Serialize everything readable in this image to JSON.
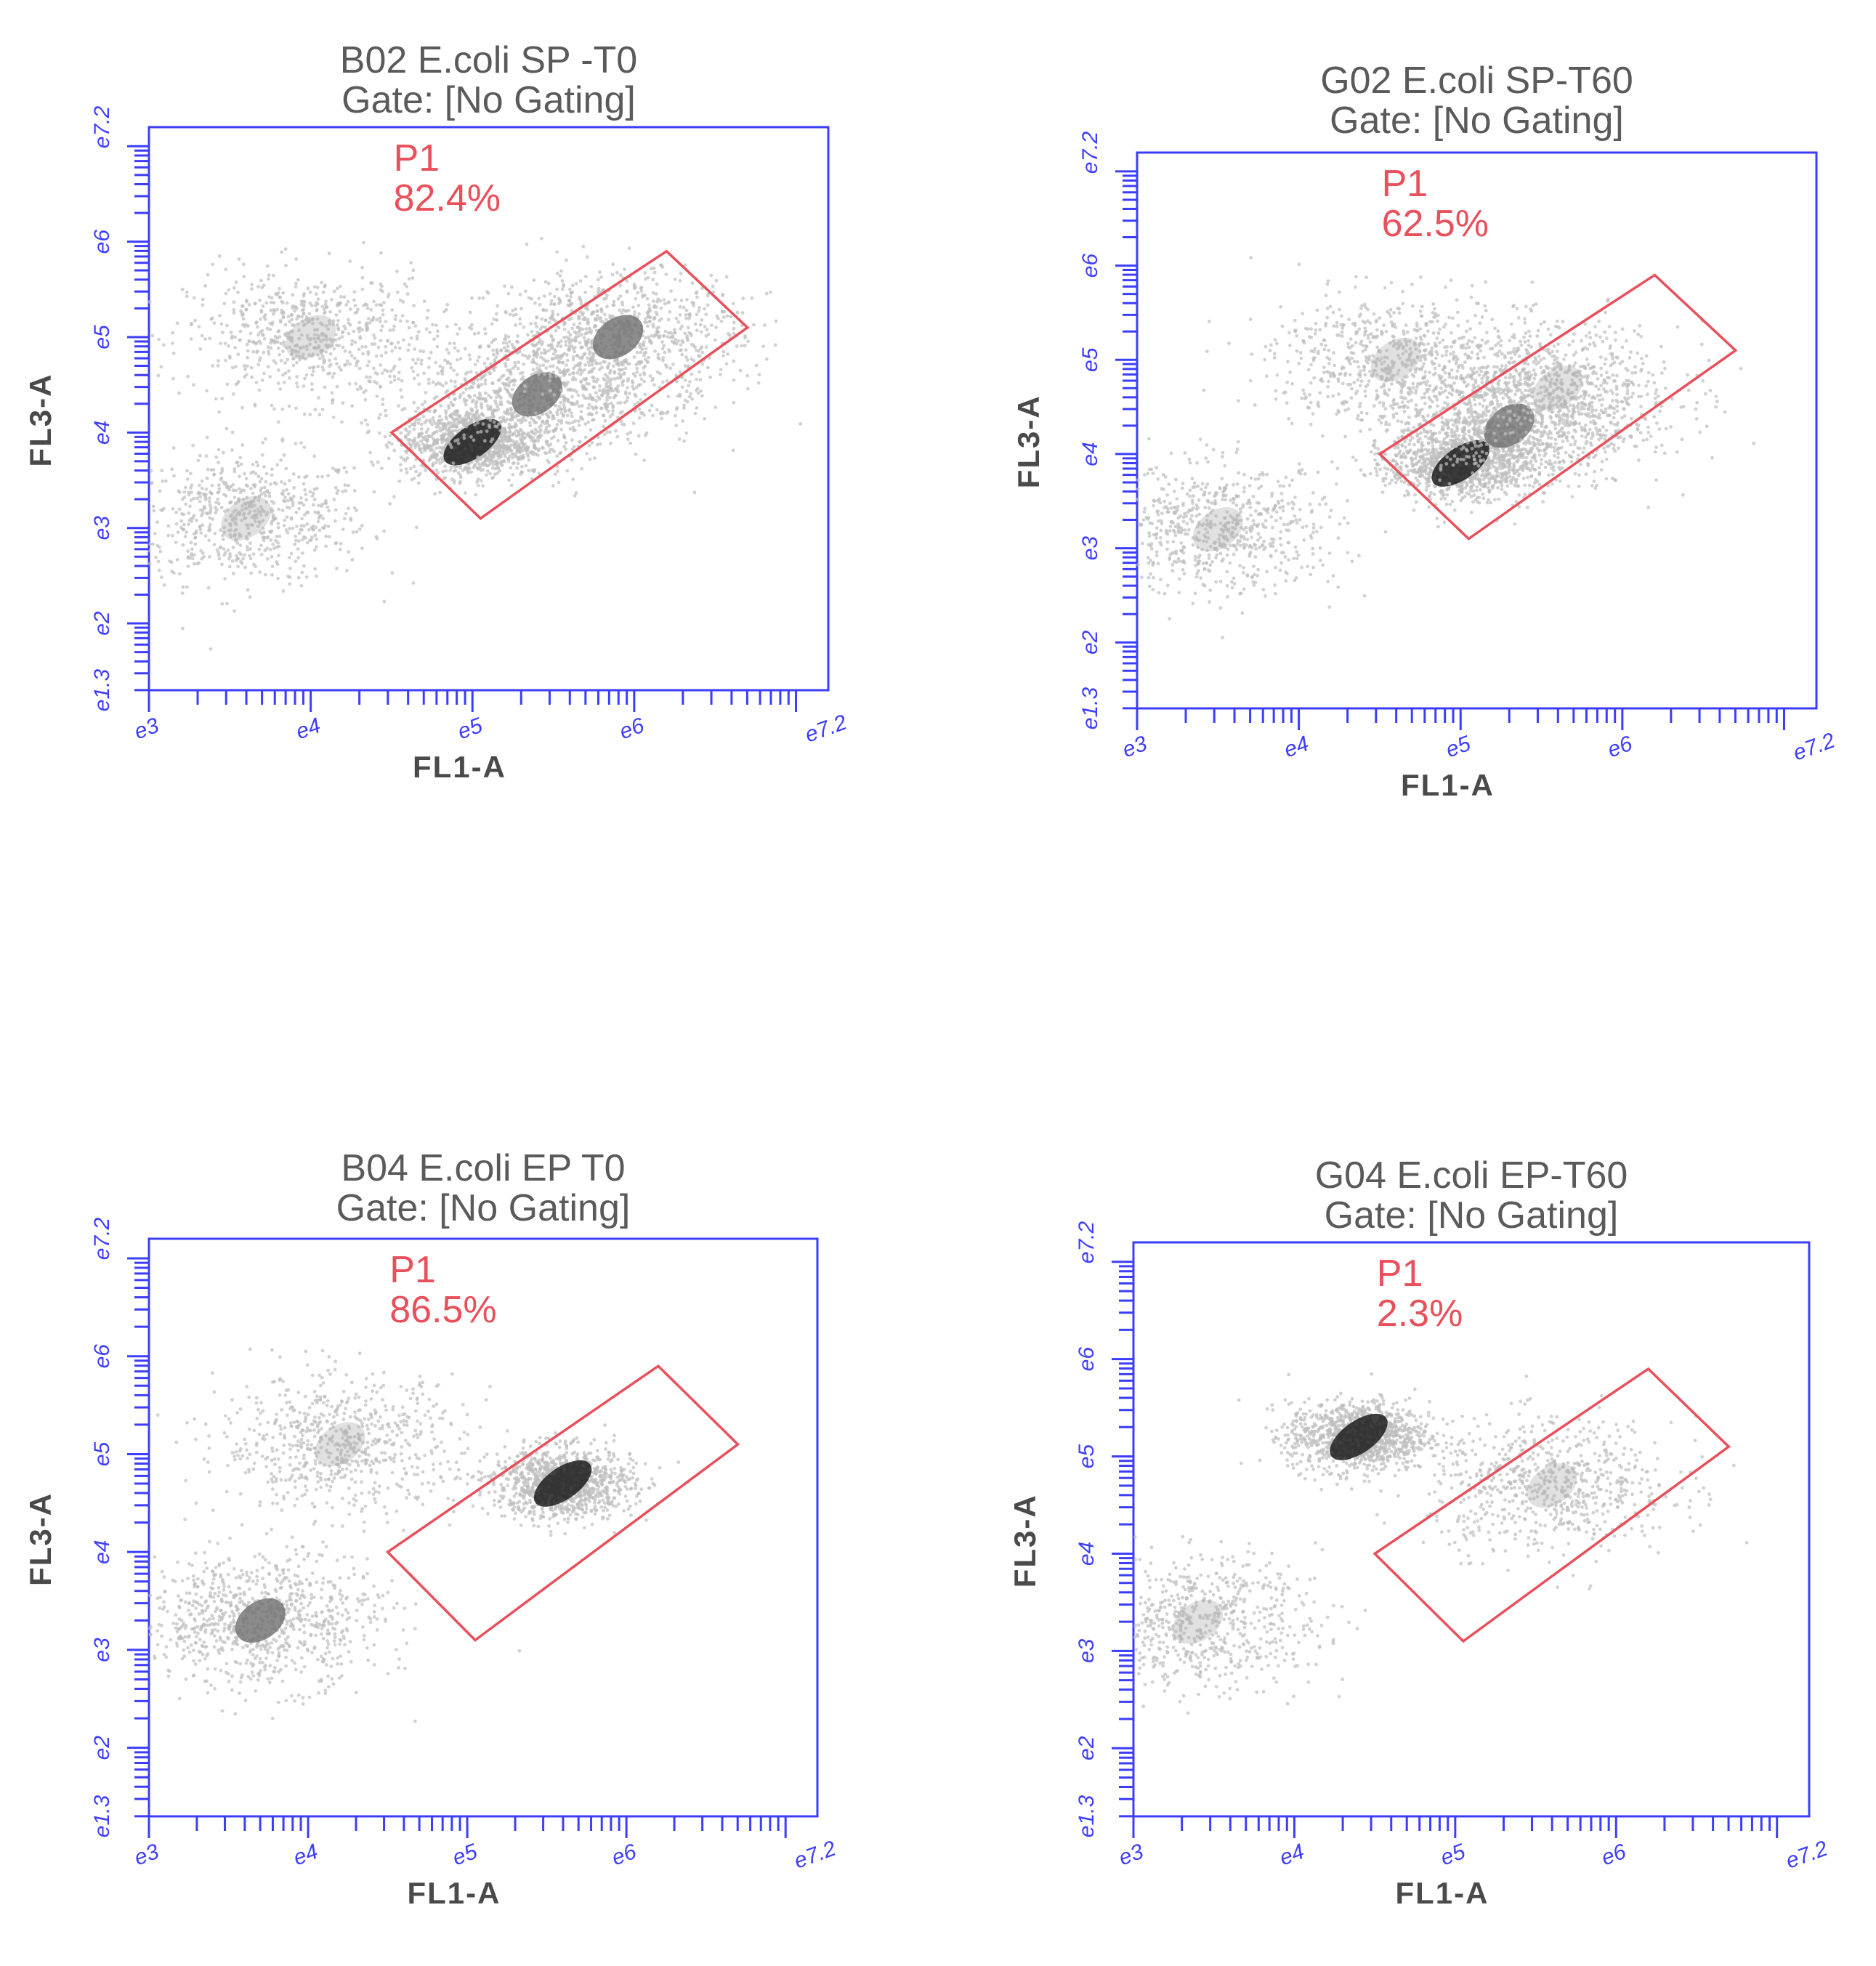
{
  "chart_data": [
    {
      "type": "scatter",
      "title": "B02 E.coli SP -T0",
      "subtitle": "Gate: [No Gating]",
      "xlabel": "FL1-A",
      "ylabel": "FL3-A",
      "x_scale": "log10",
      "y_scale": "log10",
      "xlim": [
        1000,
        15848932
      ],
      "ylim": [
        19953,
        15848932
      ],
      "x_ticks": [
        "10^3",
        "10^4",
        "10^5",
        "10^6",
        "10^7.2"
      ],
      "y_ticks": [
        "10^1.3",
        "10^2",
        "10^3",
        "10^4",
        "10^5",
        "10^6",
        "10^7.2"
      ],
      "gate": {
        "name": "P1",
        "percent": "82.4%",
        "color": "#e8505b"
      },
      "gate_polygon_log10": [
        [
          4.5,
          4.0
        ],
        [
          6.2,
          5.9
        ],
        [
          6.7,
          5.1
        ],
        [
          5.05,
          3.1
        ]
      ],
      "populations": [
        {
          "log_x": 3.6,
          "log_y": 3.1,
          "density": "low"
        },
        {
          "log_x": 4.0,
          "log_y": 5.0,
          "density": "low"
        },
        {
          "log_x": 5.0,
          "log_y": 3.9,
          "density": "high"
        },
        {
          "log_x": 5.4,
          "log_y": 4.4,
          "density": "medium"
        },
        {
          "log_x": 5.9,
          "log_y": 5.0,
          "density": "medium"
        }
      ]
    },
    {
      "type": "scatter",
      "title": "G02 E.coli SP-T60",
      "subtitle": "Gate: [No Gating]",
      "xlabel": "FL1-A",
      "ylabel": "FL3-A",
      "x_scale": "log10",
      "y_scale": "log10",
      "xlim": [
        1000,
        15848932
      ],
      "ylim": [
        19953,
        15848932
      ],
      "x_ticks": [
        "10^3",
        "10^4",
        "10^5",
        "10^6",
        "10^7.2"
      ],
      "y_ticks": [
        "10^1.3",
        "10^2",
        "10^3",
        "10^4",
        "10^5",
        "10^6",
        "10^7.2"
      ],
      "gate": {
        "name": "P1",
        "percent": "62.5%",
        "color": "#e8505b"
      },
      "gate_polygon_log10": [
        [
          4.5,
          4.0
        ],
        [
          6.2,
          5.9
        ],
        [
          6.7,
          5.1
        ],
        [
          5.05,
          3.1
        ]
      ],
      "populations": [
        {
          "log_x": 3.5,
          "log_y": 3.2,
          "density": "low"
        },
        {
          "log_x": 4.6,
          "log_y": 5.0,
          "density": "low"
        },
        {
          "log_x": 5.0,
          "log_y": 3.9,
          "density": "high"
        },
        {
          "log_x": 5.3,
          "log_y": 4.3,
          "density": "medium"
        },
        {
          "log_x": 5.6,
          "log_y": 4.7,
          "density": "low"
        }
      ]
    },
    {
      "type": "scatter",
      "title": "B04 E.coli EP T0",
      "subtitle": "Gate: [No Gating]",
      "xlabel": "FL1-A",
      "ylabel": "FL3-A",
      "x_scale": "log10",
      "y_scale": "log10",
      "xlim": [
        1000,
        15848932
      ],
      "ylim": [
        19953,
        15848932
      ],
      "x_ticks": [
        "10^3",
        "10^4",
        "10^5",
        "10^6",
        "10^7.2"
      ],
      "y_ticks": [
        "10^1.3",
        "10^2",
        "10^3",
        "10^4",
        "10^5",
        "10^6",
        "10^7.2"
      ],
      "gate": {
        "name": "P1",
        "percent": "86.5%",
        "color": "#e8505b"
      },
      "gate_polygon_log10": [
        [
          4.5,
          4.0
        ],
        [
          6.2,
          5.9
        ],
        [
          6.7,
          5.1
        ],
        [
          5.05,
          3.1
        ]
      ],
      "populations": [
        {
          "log_x": 3.7,
          "log_y": 3.3,
          "density": "medium"
        },
        {
          "log_x": 4.2,
          "log_y": 5.1,
          "density": "low"
        },
        {
          "log_x": 5.6,
          "log_y": 4.7,
          "density": "high"
        }
      ]
    },
    {
      "type": "scatter",
      "title": "G04 E.coli EP-T60",
      "subtitle": "Gate: [No Gating]",
      "xlabel": "FL1-A",
      "ylabel": "FL3-A",
      "x_scale": "log10",
      "y_scale": "log10",
      "xlim": [
        1000,
        15848932
      ],
      "ylim": [
        19953,
        15848932
      ],
      "x_ticks": [
        "10^3",
        "10^4",
        "10^5",
        "10^6",
        "10^7.2"
      ],
      "y_ticks": [
        "10^1.3",
        "10^2",
        "10^3",
        "10^4",
        "10^5",
        "10^6",
        "10^7.2"
      ],
      "gate": {
        "name": "P1",
        "percent": "2.3%",
        "color": "#e8505b"
      },
      "gate_polygon_log10": [
        [
          4.5,
          4.0
        ],
        [
          6.2,
          5.9
        ],
        [
          6.7,
          5.1
        ],
        [
          5.05,
          3.1
        ]
      ],
      "populations": [
        {
          "log_x": 3.4,
          "log_y": 3.3,
          "density": "low"
        },
        {
          "log_x": 4.4,
          "log_y": 5.2,
          "density": "high"
        },
        {
          "log_x": 5.6,
          "log_y": 4.7,
          "density": "low"
        }
      ]
    }
  ],
  "colors": {
    "axis": "#3d3dff",
    "gate": "#e8505b",
    "text": "#5a5a5a",
    "dots": "#bdbdbd"
  }
}
